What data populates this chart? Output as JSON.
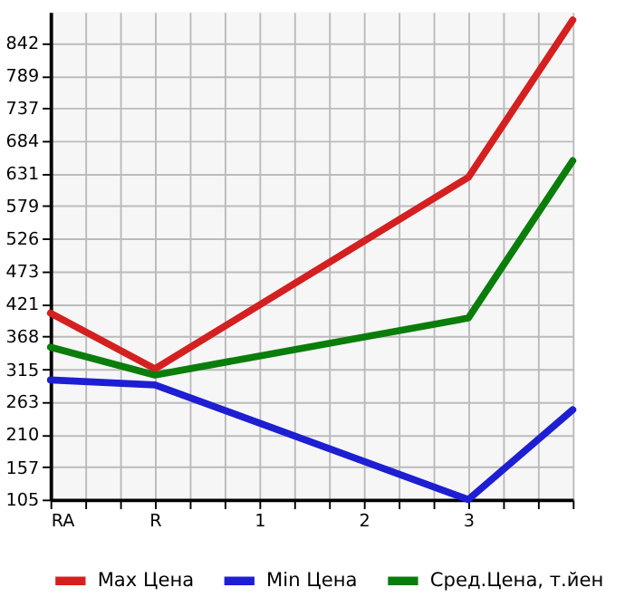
{
  "chart_data": {
    "type": "line",
    "categories": [
      "RA",
      "R",
      "1",
      "2",
      "3",
      null
    ],
    "series": [
      {
        "name": "Max Цена",
        "color": "#d42020",
        "values": [
          406,
          316,
          null,
          null,
          625,
          879
        ]
      },
      {
        "name": "Min Цена",
        "color": "#1e1ed2",
        "values": [
          298,
          290,
          null,
          null,
          105,
          250
        ]
      },
      {
        "name": "Сред.Цена, т.йен",
        "color": "#0a7d0a",
        "values": [
          351,
          306,
          null,
          null,
          398,
          652
        ]
      }
    ],
    "ylim": [
      105,
      892
    ],
    "yticks": [
      105,
      157,
      210,
      263,
      315,
      368,
      421,
      473,
      526,
      579,
      631,
      684,
      737,
      789,
      842
    ],
    "grid": true,
    "legend": "bottom",
    "marker": "none",
    "line_style": "solid"
  }
}
